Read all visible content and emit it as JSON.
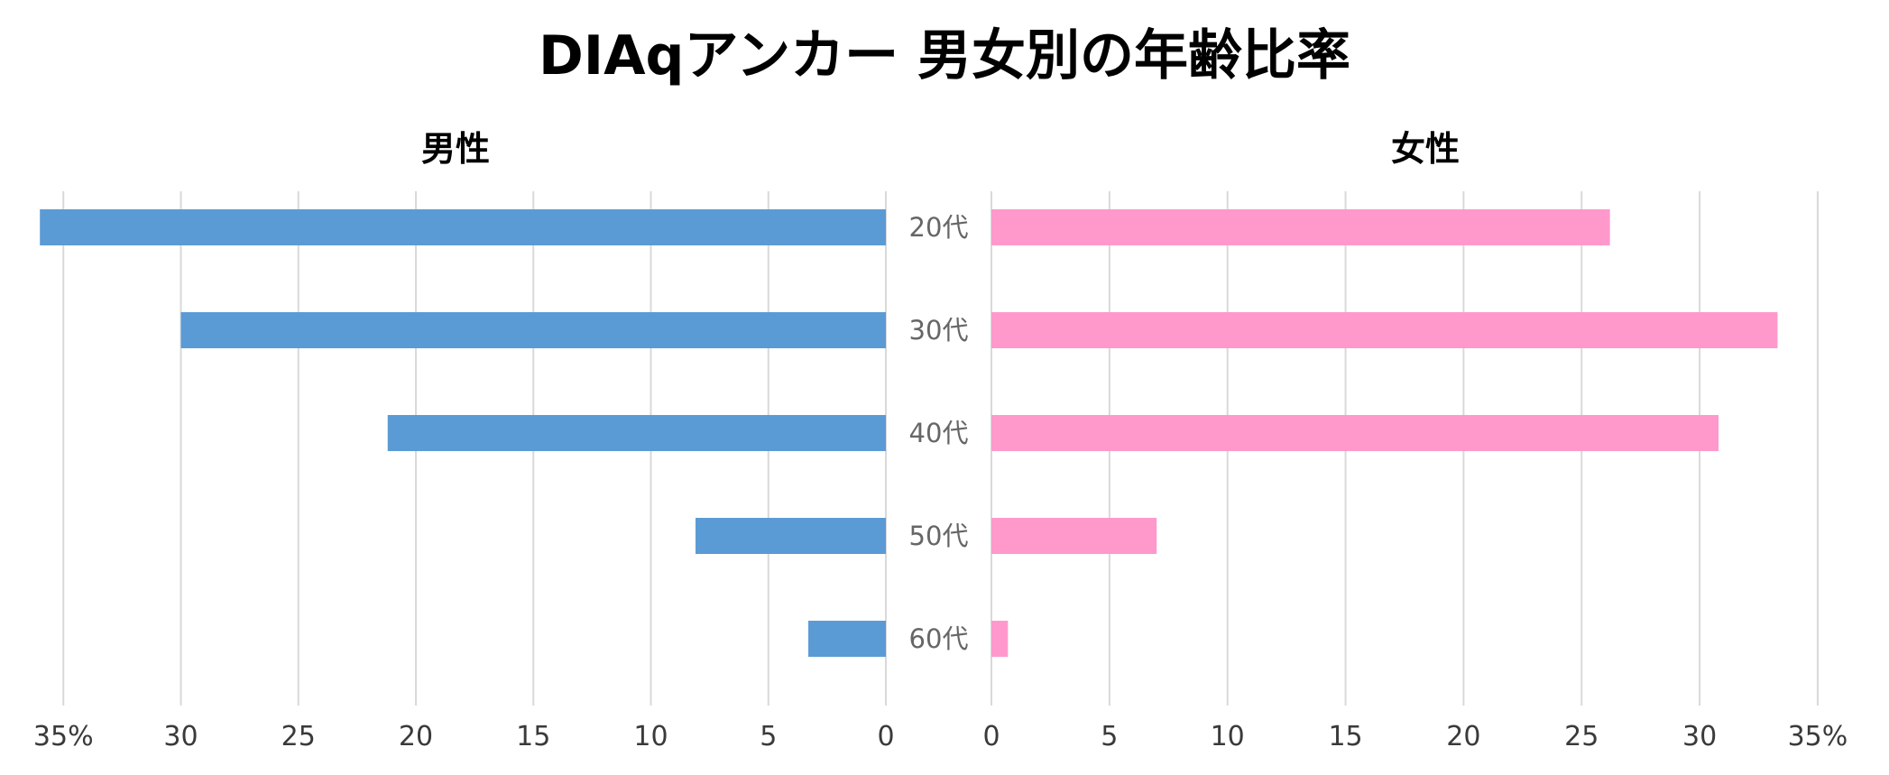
{
  "chart_data": {
    "type": "bar",
    "title": "DIAqアンカー 男女別の年齢比率",
    "categories": [
      "20代",
      "30代",
      "40代",
      "50代",
      "60代"
    ],
    "series": [
      {
        "name": "男性",
        "values": [
          36,
          30,
          21.2,
          8.1,
          3.3
        ],
        "color": "#5b9bd5"
      },
      {
        "name": "女性",
        "values": [
          26.2,
          33.3,
          30.8,
          7,
          0.7
        ],
        "color": "#ff99cc"
      }
    ],
    "xlim": [
      0,
      35
    ],
    "tick_step": 5,
    "tick_labels": {
      "male": [
        "35%",
        "30",
        "25",
        "20",
        "15",
        "10",
        "5",
        "0"
      ],
      "female": [
        "0",
        "5",
        "10",
        "15",
        "20",
        "25",
        "30",
        "35%"
      ]
    },
    "grid": true,
    "layout": "butterfly"
  }
}
